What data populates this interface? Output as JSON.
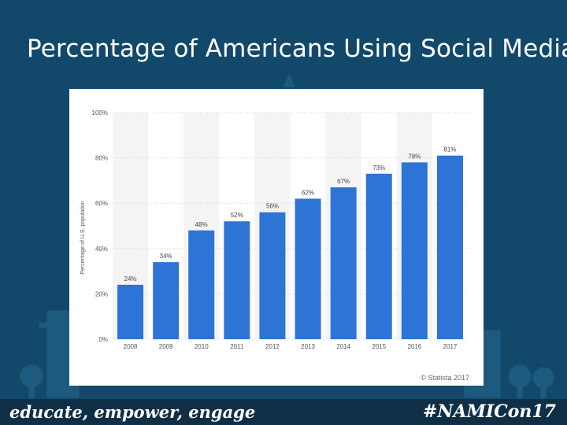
{
  "slide": {
    "title": "Percentage of Americans Using Social Media"
  },
  "footer": {
    "left": "educate, empower, engage",
    "right": "#NAMICon17"
  },
  "colors": {
    "background": "#12496b",
    "bar": "#2d74d6",
    "footer": "#0f2f47"
  },
  "chart_data": {
    "type": "bar",
    "title": "",
    "xlabel": "",
    "ylabel": "Percentage of U.S. population",
    "categories": [
      "2008",
      "2009",
      "2010",
      "2011",
      "2012",
      "2013",
      "2014",
      "2015",
      "2016",
      "2017"
    ],
    "values": [
      24,
      34,
      48,
      52,
      56,
      62,
      67,
      73,
      78,
      81
    ],
    "data_labels": [
      "24%",
      "34%",
      "48%",
      "52%",
      "56%",
      "62%",
      "67%",
      "73%",
      "78%",
      "81%"
    ],
    "y_ticks": [
      0,
      20,
      40,
      60,
      80,
      100
    ],
    "y_tick_labels": [
      "0%",
      "20%",
      "40%",
      "60%",
      "80%",
      "100%"
    ],
    "ylim": [
      0,
      100
    ],
    "grid": true,
    "source": "© Statista 2017"
  }
}
